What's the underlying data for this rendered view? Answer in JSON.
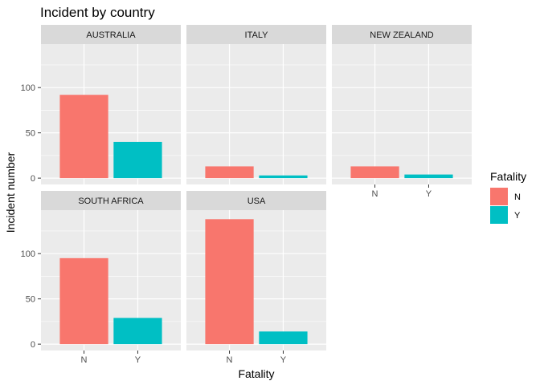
{
  "chart_data": {
    "type": "bar",
    "title": "Incident by country",
    "xlabel": "Fatality",
    "ylabel": "Incident number",
    "ylim": [
      -7,
      148
    ],
    "yticks": [
      0,
      50,
      100
    ],
    "categories": [
      "N",
      "Y"
    ],
    "grid": true,
    "legend": {
      "title": "Fatality",
      "position": "right",
      "entries": [
        {
          "label": "N",
          "color": "#F8766D"
        },
        {
          "label": "Y",
          "color": "#00BFC4"
        }
      ]
    },
    "panels": [
      {
        "name": "AUSTRALIA",
        "values": [
          92,
          40
        ]
      },
      {
        "name": "ITALY",
        "values": [
          13,
          3
        ]
      },
      {
        "name": "NEW ZEALAND",
        "values": [
          13,
          4
        ]
      },
      {
        "name": "SOUTH AFRICA",
        "values": [
          95,
          29
        ]
      },
      {
        "name": "USA",
        "values": [
          138,
          14
        ]
      }
    ]
  }
}
